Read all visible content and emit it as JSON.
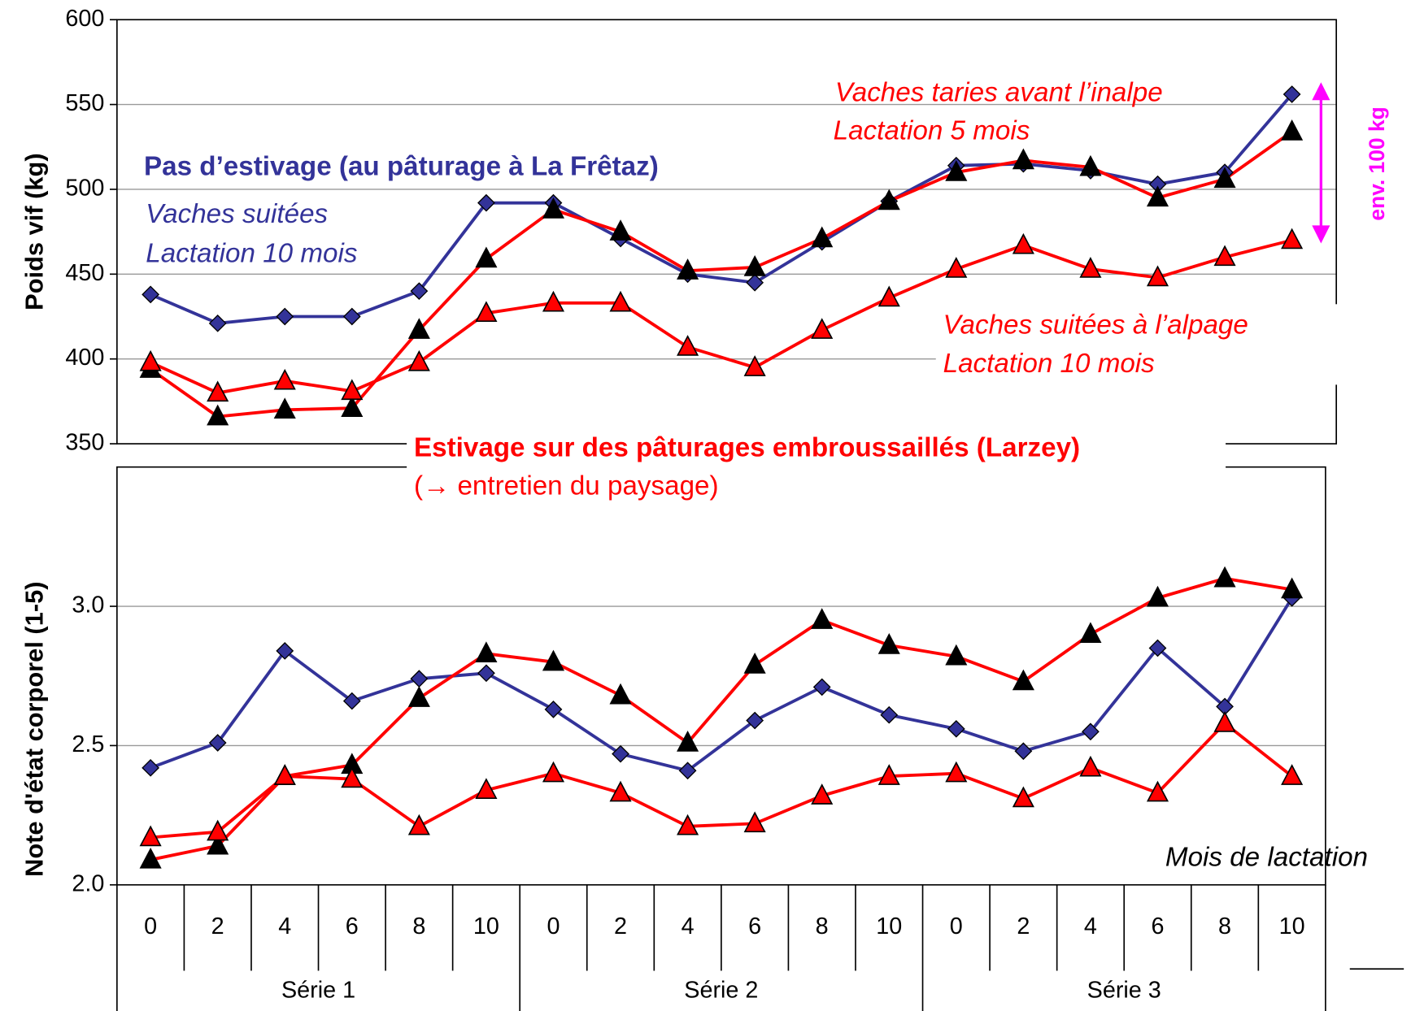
{
  "chart_data": [
    {
      "type": "line",
      "ylabel": "Poids vif (kg)",
      "ylim": [
        350,
        600
      ],
      "yticks": [
        350,
        400,
        450,
        500,
        550,
        600
      ],
      "grid": true,
      "series": [
        {
          "color": "#333399",
          "marker": "diamond",
          "marker_color": "#333399",
          "values": [
            438,
            421,
            425,
            425,
            440,
            492,
            492,
            471,
            450,
            445,
            469,
            493,
            514,
            515,
            511,
            503,
            510,
            556
          ]
        },
        {
          "color": "#ff0000",
          "marker": "triangle",
          "marker_color": "#000000",
          "values": [
            394,
            366,
            370,
            371,
            417,
            459,
            488,
            475,
            452,
            454,
            471,
            493,
            510,
            517,
            513,
            495,
            506,
            534
          ]
        },
        {
          "color": "#ff0000",
          "marker": "triangle",
          "marker_color": "#ff0000",
          "values": [
            398,
            380,
            387,
            381,
            398,
            427,
            433,
            433,
            407,
            395,
            417,
            436,
            453,
            467,
            453,
            448,
            460,
            470
          ]
        }
      ],
      "annotations": [
        "Vaches taries avant l’inalpe",
        "Lactation 5 mois",
        "Pas d’estivage (au pâturage à La Frêtaz)",
        "Vaches suitées",
        "Lactation 10 mois",
        "Vaches suitées à l’alpage",
        "Lactation 10 mois",
        "env. 100 kg",
        "Estivage sur des pâturages embroussaillés (Larzey)",
        "(→ entretien du paysage)"
      ]
    },
    {
      "type": "line",
      "ylabel": "Note d'état corporel (1-5)",
      "categories": [
        "0",
        "2",
        "4",
        "6",
        "8",
        "10",
        "0",
        "2",
        "4",
        "6",
        "8",
        "10",
        "0",
        "2",
        "4",
        "6",
        "8",
        "10"
      ],
      "groups": [
        "Série 1",
        "Série 2",
        "Série 3"
      ],
      "ylim": [
        2.0,
        3.5
      ],
      "yticks": [
        {
          "value": 2.0,
          "label": "2.0"
        },
        2.5,
        {
          "value": 3.0,
          "label": "3.0"
        }
      ],
      "grid": true,
      "series": [
        {
          "color": "#333399",
          "marker": "diamond",
          "marker_color": "#333399",
          "values": [
            2.42,
            2.51,
            2.84,
            2.66,
            2.74,
            2.76,
            2.63,
            2.47,
            2.41,
            2.59,
            2.71,
            2.61,
            2.56,
            2.48,
            2.55,
            2.85,
            2.64,
            3.03
          ]
        },
        {
          "color": "#ff0000",
          "marker": "triangle",
          "marker_color": "#000000",
          "values": [
            2.09,
            2.14,
            2.39,
            2.43,
            2.67,
            2.83,
            2.8,
            2.68,
            2.51,
            2.79,
            2.95,
            2.86,
            2.82,
            2.73,
            2.9,
            3.03,
            3.1,
            3.06
          ]
        },
        {
          "color": "#ff0000",
          "marker": "triangle",
          "marker_color": "#ff0000",
          "values": [
            2.17,
            2.19,
            2.39,
            2.38,
            2.21,
            2.34,
            2.4,
            2.33,
            2.21,
            2.22,
            2.32,
            2.39,
            2.4,
            2.31,
            2.42,
            2.33,
            2.58,
            2.39
          ]
        }
      ],
      "annotations": [
        "Mois de lactation"
      ]
    }
  ]
}
